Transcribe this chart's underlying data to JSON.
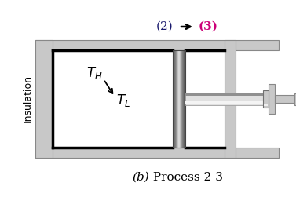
{
  "fig_width": 3.77,
  "fig_height": 2.56,
  "dpi": 100,
  "bg_color": "#ffffff",
  "insulation_label": "Insulation",
  "title_label_2": "(2)",
  "title_label_3": "(3)",
  "title_color_2": "#1a1a6e",
  "title_color_3": "#cc0077",
  "caption_italic": "(b)",
  "caption_normal": " Process 2-3",
  "TH_label": "$T_H$",
  "TL_label": "$T_L$",
  "wall_gray": "#c8c8c8",
  "wall_dark": "#888888",
  "piston_light": "#e8e8e8",
  "piston_dark": "#606060",
  "rod_light": "#e0e0e0",
  "rod_dark": "#a0a0a0",
  "inner_bg": "#ffffff"
}
